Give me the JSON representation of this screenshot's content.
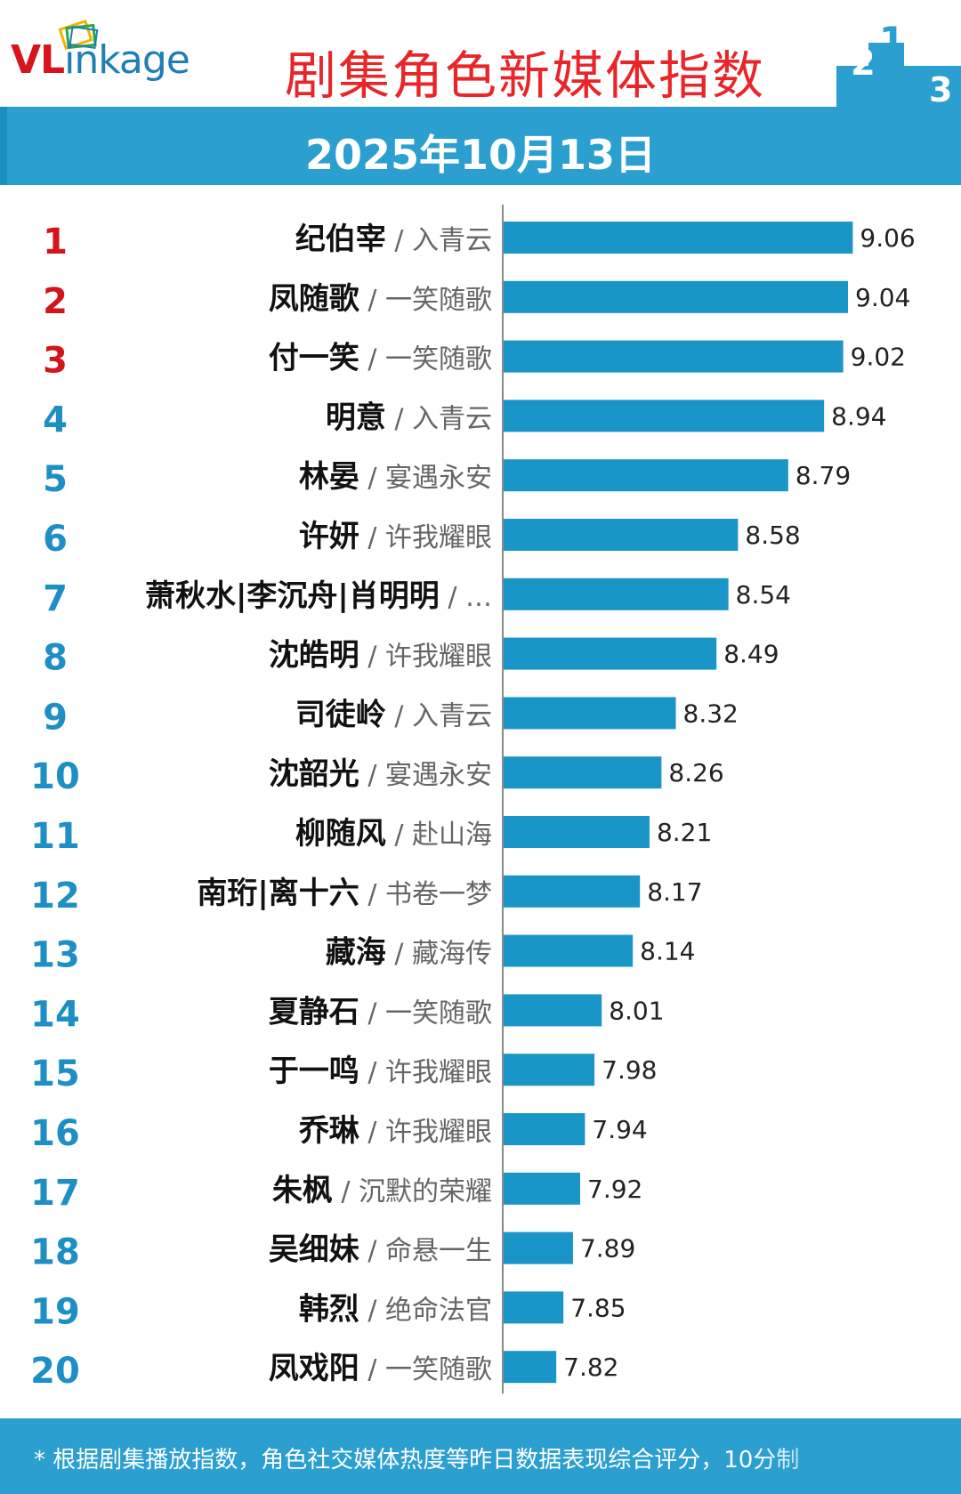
{
  "header": {
    "logo_vl": "VL",
    "logo_rest": "inkage",
    "title": "剧集角色新媒体指数"
  },
  "date": "2025年10月13日",
  "footer": "* 根据剧集播放指数，角色社交媒体热度等昨日数据表现综合评分，10分制",
  "colors": {
    "bar": "#1a95c8",
    "rank_top3": "#d4141c",
    "rank_rest": "#1d8fc5",
    "title_red": "#e8262a"
  },
  "chart_data": {
    "type": "bar",
    "orientation": "horizontal",
    "title": "剧集角色新媒体指数",
    "xlim": [
      7.6,
      9.2
    ],
    "categories": [
      "纪伯宰 / 入青云",
      "凤随歌 / 一笑随歌",
      "付一笑 / 一笑随歌",
      "明意 / 入青云",
      "林晏 / 宴遇永安",
      "许妍 / 许我耀眼",
      "萧秋水|李沉舟|肖明明 / …",
      "沈皓明 / 许我耀眼",
      "司徒岭 / 入青云",
      "沈韶光 / 宴遇永安",
      "柳随风 / 赴山海",
      "南珩|离十六 / 书卷一梦",
      "藏海 / 藏海传",
      "夏静石 / 一笑随歌",
      "于一鸣 / 许我耀眼",
      "乔琳 / 许我耀眼",
      "朱枫 / 沉默的荣耀",
      "吴细妹 / 命悬一生",
      "韩烈 / 绝命法官",
      "凤戏阳 / 一笑随歌"
    ],
    "rows": [
      {
        "rank": "1",
        "role": "纪伯宰",
        "show": "入青云",
        "value": 9.06,
        "label": "9.06"
      },
      {
        "rank": "2",
        "role": "凤随歌",
        "show": "一笑随歌",
        "value": 9.04,
        "label": "9.04"
      },
      {
        "rank": "3",
        "role": "付一笑",
        "show": "一笑随歌",
        "value": 9.02,
        "label": "9.02"
      },
      {
        "rank": "4",
        "role": "明意",
        "show": "入青云",
        "value": 8.94,
        "label": "8.94"
      },
      {
        "rank": "5",
        "role": "林晏",
        "show": "宴遇永安",
        "value": 8.79,
        "label": "8.79"
      },
      {
        "rank": "6",
        "role": "许妍",
        "show": "许我耀眼",
        "value": 8.58,
        "label": "8.58"
      },
      {
        "rank": "7",
        "role": "萧秋水|李沉舟|肖明明",
        "show": "…",
        "value": 8.54,
        "label": "8.54"
      },
      {
        "rank": "8",
        "role": "沈皓明",
        "show": "许我耀眼",
        "value": 8.49,
        "label": "8.49"
      },
      {
        "rank": "9",
        "role": "司徒岭",
        "show": "入青云",
        "value": 8.32,
        "label": "8.32"
      },
      {
        "rank": "10",
        "role": "沈韶光",
        "show": "宴遇永安",
        "value": 8.26,
        "label": "8.26"
      },
      {
        "rank": "11",
        "role": "柳随风",
        "show": "赴山海",
        "value": 8.21,
        "label": "8.21"
      },
      {
        "rank": "12",
        "role": "南珩|离十六",
        "show": "书卷一梦",
        "value": 8.17,
        "label": "8.17"
      },
      {
        "rank": "13",
        "role": "藏海",
        "show": "藏海传",
        "value": 8.14,
        "label": "8.14"
      },
      {
        "rank": "14",
        "role": "夏静石",
        "show": "一笑随歌",
        "value": 8.01,
        "label": "8.01"
      },
      {
        "rank": "15",
        "role": "于一鸣",
        "show": "许我耀眼",
        "value": 7.98,
        "label": "7.98"
      },
      {
        "rank": "16",
        "role": "乔琳",
        "show": "许我耀眼",
        "value": 7.94,
        "label": "7.94"
      },
      {
        "rank": "17",
        "role": "朱枫",
        "show": "沉默的荣耀",
        "value": 7.92,
        "label": "7.92"
      },
      {
        "rank": "18",
        "role": "吴细妹",
        "show": "命悬一生",
        "value": 7.89,
        "label": "7.89"
      },
      {
        "rank": "19",
        "role": "韩烈",
        "show": "绝命法官",
        "value": 7.85,
        "label": "7.85"
      },
      {
        "rank": "20",
        "role": "凤戏阳",
        "show": "一笑随歌",
        "value": 7.82,
        "label": "7.82"
      }
    ]
  }
}
